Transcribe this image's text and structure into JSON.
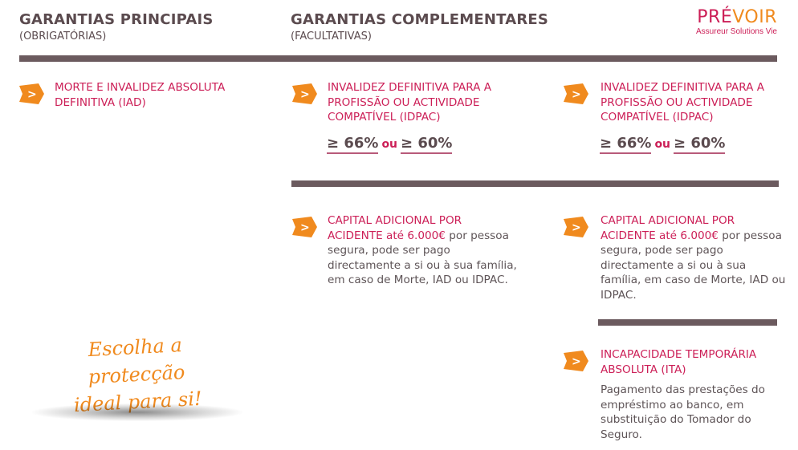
{
  "header": {
    "main_title": "GARANTIAS PRINCIPAIS",
    "main_sub": "(OBRIGATÓRIAS)",
    "comp_title": "GARANTIAS COMPLEMENTARES",
    "comp_sub": "(FACULTATIVAS)"
  },
  "logo": {
    "pre": "PRÉ",
    "voir": "VOIR",
    "tagline": "Assureur Solutions Vie"
  },
  "colors": {
    "accent": "#cc1f57",
    "orange": "#f08a1e",
    "bar": "#6b5a5e",
    "text": "#5e5457"
  },
  "icons": {
    "bullet": "orange-arrow-icon"
  },
  "col1": {
    "iad": "MORTE E INVALIDEZ ABSOLUTA DEFINITIVA (IAD)"
  },
  "col2": {
    "idpac": "INVALIDEZ DEFINITIVA PARA A PROFISSÃO OU ACTIVIDADE COMPATÍVEL (IDPAC)",
    "pct1": "≥ 66%",
    "ou": "ou",
    "pct2": "≥ 60%",
    "cap_title": "CAPITAL ADICIONAL POR ACIDENTE até 6.000€",
    "cap_text": " por pessoa segura, pode ser pago directamente a si ou à sua família, em caso de Morte, IAD ou IDPAC."
  },
  "col3": {
    "idpac": "INVALIDEZ DEFINITIVA PARA A PROFISSÃO OU ACTIVIDADE COMPATÍVEL (IDPAC)",
    "pct1": "≥ 66%",
    "ou": "ou",
    "pct2": "≥ 60%",
    "cap_title": "CAPITAL ADICIONAL POR ACIDENTE até 6.000€",
    "cap_text": " por pessoa segura, pode ser pago directamente a si ou à sua família, em caso de Morte, IAD ou IDPAC.",
    "ita_title": "INCAPACIDADE TEMPORÁRIA ABSOLUTA (ITA)",
    "ita_text": "Pagamento das prestações do empréstimo ao banco, em substituição do Tomador do Seguro."
  },
  "slogan": {
    "line1": "Escolha a protecção",
    "line2": "ideal para si!"
  }
}
